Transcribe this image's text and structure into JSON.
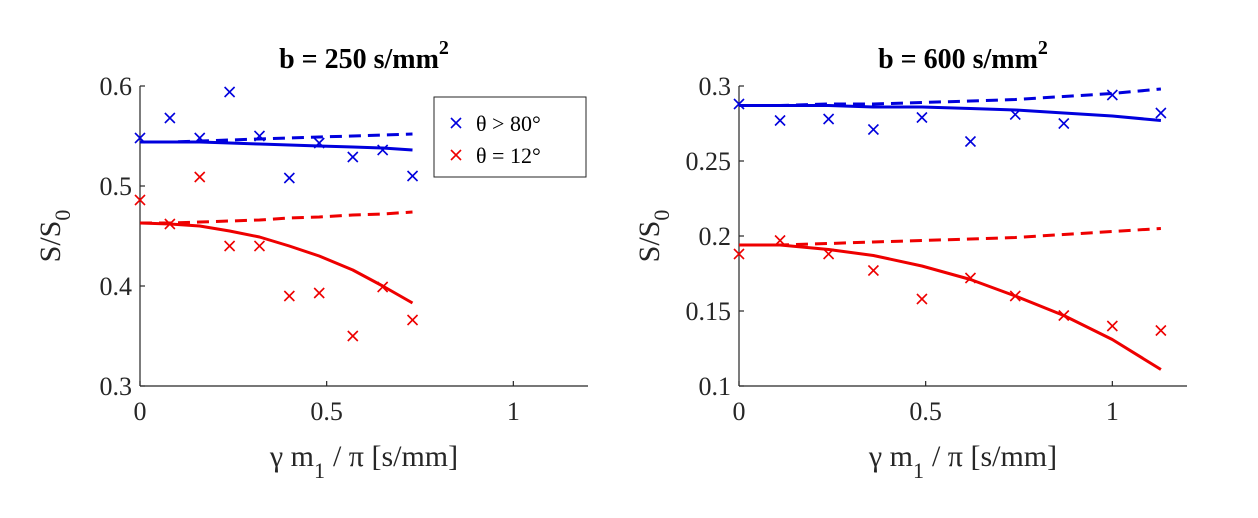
{
  "chart_data": [
    {
      "type": "scatter",
      "title": "b = 250 s/mm",
      "title_superscript": "2",
      "xlabel": {
        "base": "γ m",
        "subscript": "1",
        "rest": "/ π [s/mm]"
      },
      "ylabel": {
        "base": "S/S",
        "subscript": "0"
      },
      "xlim": [
        0,
        1.2
      ],
      "ylim": [
        0.3,
        0.6
      ],
      "xticks": [
        0,
        0.5,
        1
      ],
      "xtick_labels": [
        "0",
        "0.5",
        "1"
      ],
      "yticks": [
        0.3,
        0.4,
        0.5,
        0.6
      ],
      "ytick_labels": [
        "0.3",
        "0.4",
        "0.5",
        "0.6"
      ],
      "legend": {
        "placement": "top-right",
        "entries": [
          {
            "label": "θ > 80°",
            "color": "#0000dd"
          },
          {
            "label": "θ = 12°",
            "color": "#ee0000"
          }
        ]
      },
      "series": [
        {
          "name": "θ > 80° (measured)",
          "kind": "markers",
          "color": "#0000dd",
          "x": [
            0,
            0.08,
            0.16,
            0.24,
            0.32,
            0.4,
            0.48,
            0.57,
            0.65,
            0.73
          ],
          "y": [
            0.548,
            0.568,
            0.548,
            0.594,
            0.55,
            0.508,
            0.543,
            0.529,
            0.536,
            0.51
          ]
        },
        {
          "name": "θ = 12° (measured)",
          "kind": "markers",
          "color": "#ee0000",
          "x": [
            0,
            0.08,
            0.16,
            0.24,
            0.32,
            0.4,
            0.48,
            0.57,
            0.65,
            0.73
          ],
          "y": [
            0.486,
            0.462,
            0.509,
            0.44,
            0.44,
            0.39,
            0.393,
            0.35,
            0.399,
            0.366
          ]
        },
        {
          "name": "θ > 80° fit (solid)",
          "kind": "line",
          "style": "solid",
          "color": "#0000dd",
          "x": [
            0,
            0.08,
            0.16,
            0.24,
            0.32,
            0.4,
            0.48,
            0.57,
            0.65,
            0.73
          ],
          "y": [
            0.544,
            0.544,
            0.544,
            0.543,
            0.542,
            0.541,
            0.54,
            0.539,
            0.538,
            0.536
          ]
        },
        {
          "name": "θ > 80° fit (dashed)",
          "kind": "line",
          "style": "dashed",
          "color": "#0000dd",
          "x": [
            0,
            0.08,
            0.16,
            0.24,
            0.32,
            0.4,
            0.48,
            0.57,
            0.65,
            0.73
          ],
          "y": [
            0.544,
            0.544,
            0.545,
            0.546,
            0.547,
            0.548,
            0.549,
            0.55,
            0.551,
            0.552
          ]
        },
        {
          "name": "θ = 12° fit (solid)",
          "kind": "line",
          "style": "solid",
          "color": "#ee0000",
          "x": [
            0,
            0.08,
            0.16,
            0.24,
            0.32,
            0.4,
            0.48,
            0.57,
            0.65,
            0.73
          ],
          "y": [
            0.463,
            0.462,
            0.46,
            0.455,
            0.449,
            0.44,
            0.43,
            0.416,
            0.4,
            0.383
          ]
        },
        {
          "name": "θ = 12° fit (dashed)",
          "kind": "line",
          "style": "dashed",
          "color": "#ee0000",
          "x": [
            0,
            0.08,
            0.16,
            0.24,
            0.32,
            0.4,
            0.48,
            0.57,
            0.65,
            0.73
          ],
          "y": [
            0.463,
            0.463,
            0.464,
            0.465,
            0.466,
            0.468,
            0.469,
            0.471,
            0.472,
            0.474
          ]
        }
      ]
    },
    {
      "type": "scatter",
      "title": "b = 600 s/mm",
      "title_superscript": "2",
      "xlabel": {
        "base": "γ m",
        "subscript": "1",
        "rest": "/ π [s/mm]"
      },
      "ylabel": {
        "base": "S/S",
        "subscript": "0"
      },
      "xlim": [
        0,
        1.2
      ],
      "ylim": [
        0.1,
        0.3
      ],
      "xticks": [
        0,
        0.5,
        1
      ],
      "xtick_labels": [
        "0",
        "0.5",
        "1"
      ],
      "yticks": [
        0.1,
        0.15,
        0.2,
        0.25,
        0.3
      ],
      "ytick_labels": [
        "0.1",
        "0.15",
        "0.2",
        "0.25",
        "0.3"
      ],
      "series": [
        {
          "name": "θ > 80° (measured)",
          "kind": "markers",
          "color": "#0000dd",
          "x": [
            0,
            0.11,
            0.24,
            0.36,
            0.49,
            0.62,
            0.74,
            0.87,
            1.0,
            1.13
          ],
          "y": [
            0.288,
            0.277,
            0.278,
            0.271,
            0.279,
            0.263,
            0.281,
            0.275,
            0.294,
            0.282
          ]
        },
        {
          "name": "θ = 12° (measured)",
          "kind": "markers",
          "color": "#ee0000",
          "x": [
            0,
            0.11,
            0.24,
            0.36,
            0.49,
            0.62,
            0.74,
            0.87,
            1.0,
            1.13
          ],
          "y": [
            0.188,
            0.197,
            0.188,
            0.177,
            0.158,
            0.172,
            0.16,
            0.147,
            0.14,
            0.137
          ]
        },
        {
          "name": "θ > 80° fit (solid)",
          "kind": "line",
          "style": "solid",
          "color": "#0000dd",
          "x": [
            0,
            0.11,
            0.24,
            0.36,
            0.49,
            0.62,
            0.74,
            0.87,
            1.0,
            1.13
          ],
          "y": [
            0.287,
            0.287,
            0.287,
            0.286,
            0.286,
            0.285,
            0.284,
            0.282,
            0.28,
            0.277
          ]
        },
        {
          "name": "θ > 80° fit (dashed)",
          "kind": "line",
          "style": "dashed",
          "color": "#0000dd",
          "x": [
            0,
            0.11,
            0.24,
            0.36,
            0.49,
            0.62,
            0.74,
            0.87,
            1.0,
            1.13
          ],
          "y": [
            0.287,
            0.287,
            0.288,
            0.288,
            0.289,
            0.29,
            0.291,
            0.293,
            0.295,
            0.298
          ]
        },
        {
          "name": "θ = 12° fit (solid)",
          "kind": "line",
          "style": "solid",
          "color": "#ee0000",
          "x": [
            0,
            0.11,
            0.24,
            0.36,
            0.49,
            0.62,
            0.74,
            0.87,
            1.0,
            1.13
          ],
          "y": [
            0.194,
            0.194,
            0.191,
            0.187,
            0.18,
            0.171,
            0.16,
            0.147,
            0.131,
            0.111
          ]
        },
        {
          "name": "θ = 12° fit (dashed)",
          "kind": "line",
          "style": "dashed",
          "color": "#ee0000",
          "x": [
            0,
            0.11,
            0.24,
            0.36,
            0.49,
            0.62,
            0.74,
            0.87,
            1.0,
            1.13
          ],
          "y": [
            0.194,
            0.194,
            0.195,
            0.196,
            0.197,
            0.198,
            0.199,
            0.201,
            0.203,
            0.205
          ]
        }
      ]
    }
  ]
}
